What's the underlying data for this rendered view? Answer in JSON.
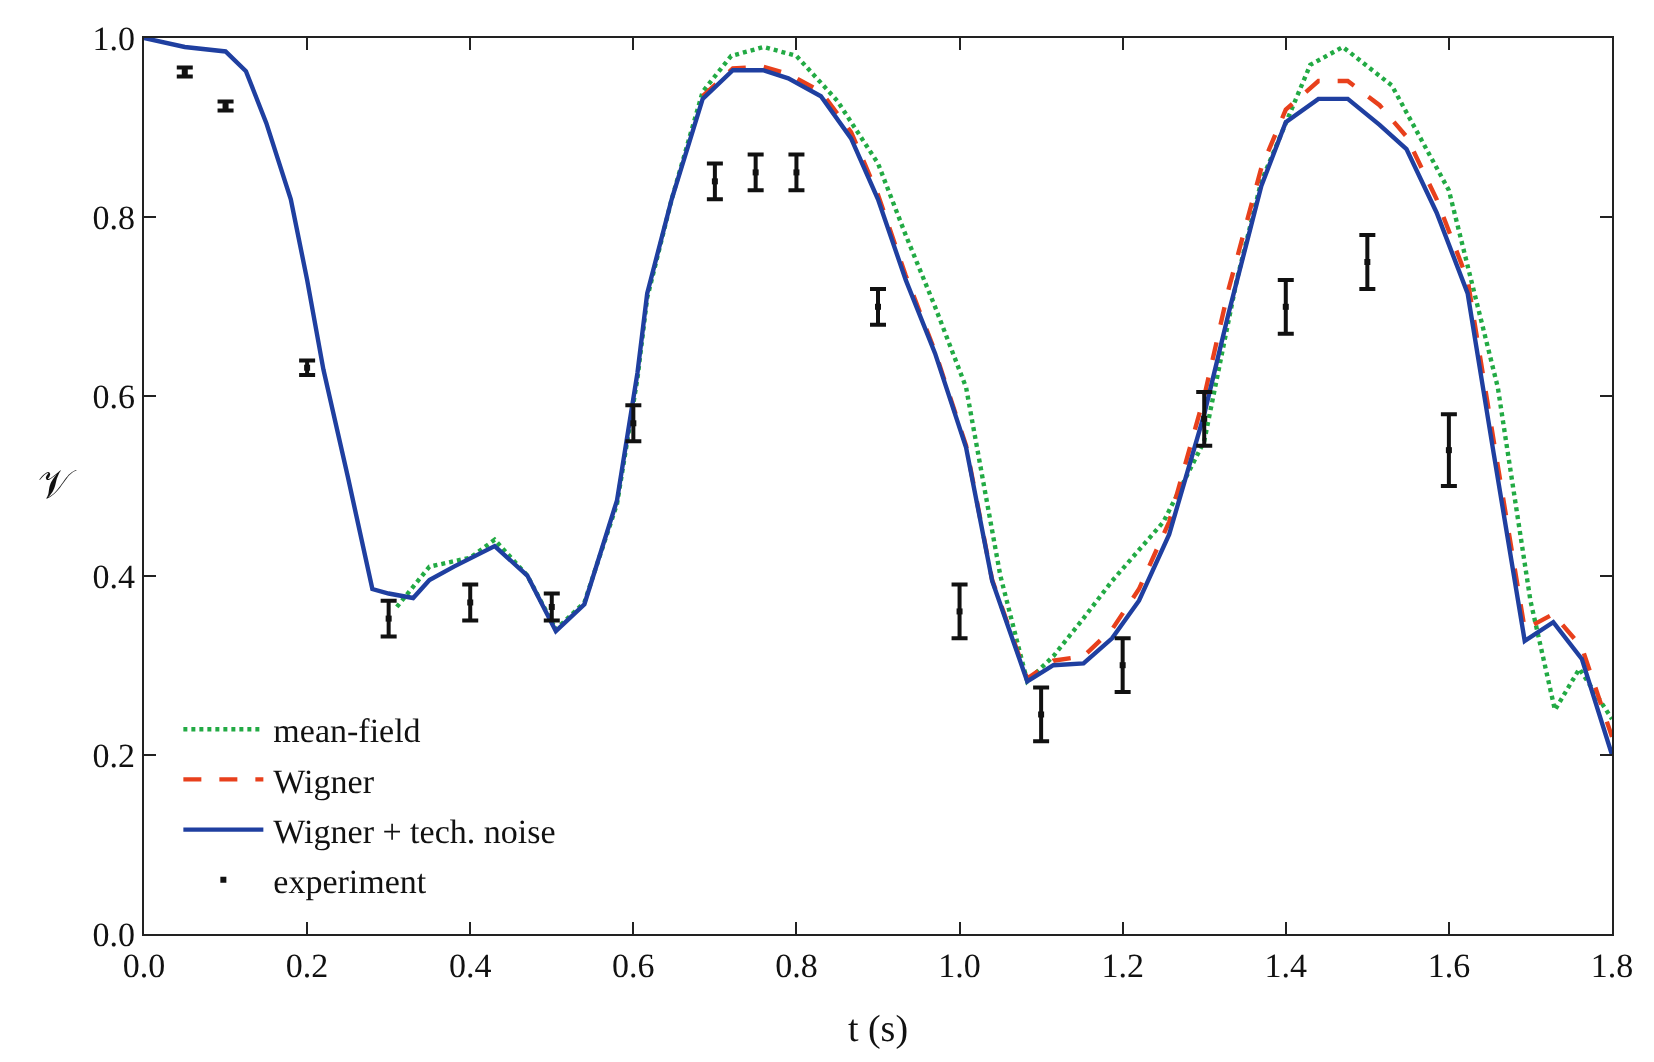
{
  "chart_data": {
    "type": "line",
    "xlabel": "t (s)",
    "ylabel": "𝒱",
    "xlim": [
      0,
      1.8
    ],
    "ylim": [
      0,
      1.0
    ],
    "xticks": [
      {
        "value": 0,
        "label": "0.0"
      },
      0.2,
      0.4,
      0.6,
      0.8,
      {
        "value": 1,
        "label": "1.0"
      },
      1.2,
      1.4,
      1.6,
      1.8
    ],
    "yticks": [
      {
        "value": 0,
        "label": "0.0"
      },
      0.2,
      0.4,
      0.6,
      0.8,
      {
        "value": 1,
        "label": "1.0"
      }
    ],
    "legend": "bottom left",
    "series": [
      {
        "name": "mean-field",
        "color": "#22aa44",
        "line_style": "dotted",
        "marker": "none",
        "x": [
          0.31,
          0.35,
          0.4,
          0.43,
          0.47,
          0.505,
          0.54,
          0.58,
          0.605,
          0.617,
          0.647,
          0.685,
          0.72,
          0.76,
          0.8,
          0.85,
          0.9,
          0.934,
          0.97,
          1.008,
          1.05,
          1.083,
          1.115,
          1.15,
          1.187,
          1.25,
          1.3,
          1.34,
          1.37,
          1.43,
          1.47,
          1.53,
          1.6,
          1.66,
          1.7,
          1.73,
          1.76,
          1.8
        ],
        "values": [
          0.365,
          0.41,
          0.42,
          0.44,
          0.4,
          0.34,
          0.37,
          0.48,
          0.62,
          0.71,
          0.82,
          0.94,
          0.98,
          0.99,
          0.98,
          0.93,
          0.86,
          0.78,
          0.7,
          0.61,
          0.4,
          0.282,
          0.31,
          0.35,
          0.394,
          0.46,
          0.55,
          0.73,
          0.84,
          0.97,
          0.99,
          0.947,
          0.83,
          0.61,
          0.372,
          0.25,
          0.296,
          0.24
        ]
      },
      {
        "name": "Wigner",
        "color": "#e8401c",
        "line_style": "dashed",
        "marker": "none",
        "x": [
          0.685,
          0.722,
          0.759,
          0.79,
          0.83,
          0.867,
          0.9,
          0.934,
          0.97,
          1.008,
          1.04,
          1.083,
          1.115,
          1.152,
          1.187,
          1.22,
          1.257,
          1.3,
          1.33,
          1.37,
          1.4,
          1.44,
          1.476,
          1.515,
          1.548,
          1.585,
          1.623,
          1.655,
          1.693,
          1.728,
          1.763,
          1.8
        ],
        "values": [
          0.935,
          0.966,
          0.968,
          0.96,
          0.94,
          0.895,
          0.825,
          0.735,
          0.65,
          0.545,
          0.395,
          0.285,
          0.305,
          0.31,
          0.34,
          0.385,
          0.46,
          0.6,
          0.72,
          0.855,
          0.92,
          0.952,
          0.952,
          0.925,
          0.89,
          0.82,
          0.73,
          0.55,
          0.34,
          0.357,
          0.32,
          0.22
        ]
      },
      {
        "name": "Wigner + tech. noise",
        "color": "#1f3fa0",
        "line_style": "solid",
        "marker": "none",
        "x": [
          0,
          0.05,
          0.1,
          0.125,
          0.15,
          0.18,
          0.2,
          0.22,
          0.25,
          0.28,
          0.3,
          0.33,
          0.35,
          0.38,
          0.43,
          0.47,
          0.505,
          0.54,
          0.58,
          0.605,
          0.617,
          0.647,
          0.685,
          0.722,
          0.759,
          0.79,
          0.83,
          0.867,
          0.9,
          0.934,
          0.97,
          1.008,
          1.04,
          1.083,
          1.115,
          1.152,
          1.187,
          1.22,
          1.257,
          1.3,
          1.33,
          1.37,
          1.4,
          1.44,
          1.476,
          1.515,
          1.548,
          1.585,
          1.623,
          1.655,
          1.693,
          1.728,
          1.763,
          1.8
        ],
        "values": [
          1.0,
          0.99,
          0.985,
          0.963,
          0.905,
          0.82,
          0.73,
          0.63,
          0.51,
          0.385,
          0.38,
          0.375,
          0.395,
          0.41,
          0.433,
          0.4,
          0.338,
          0.368,
          0.484,
          0.626,
          0.715,
          0.82,
          0.932,
          0.964,
          0.964,
          0.955,
          0.935,
          0.888,
          0.82,
          0.73,
          0.648,
          0.543,
          0.394,
          0.282,
          0.3,
          0.302,
          0.33,
          0.372,
          0.446,
          0.58,
          0.693,
          0.835,
          0.906,
          0.932,
          0.932,
          0.903,
          0.876,
          0.805,
          0.715,
          0.536,
          0.327,
          0.348,
          0.307,
          0.2
        ]
      },
      {
        "name": "experiment",
        "type": "scatter",
        "color": "#111111",
        "x": [
          0.05,
          0.1,
          0.2,
          0.3,
          0.4,
          0.5,
          0.6,
          0.7,
          0.75,
          0.8,
          0.9,
          1.0,
          1.1,
          1.2,
          1.3,
          1.4,
          1.5,
          1.6
        ],
        "values": [
          0.962,
          0.924,
          0.632,
          0.352,
          0.37,
          0.365,
          0.57,
          0.84,
          0.85,
          0.85,
          0.7,
          0.36,
          0.245,
          0.3,
          0.575,
          0.7,
          0.75,
          0.54
        ],
        "errors": [
          0.005,
          0.005,
          0.008,
          0.02,
          0.02,
          0.015,
          0.02,
          0.02,
          0.02,
          0.02,
          0.02,
          0.03,
          0.03,
          0.03,
          0.03,
          0.03,
          0.03,
          0.04
        ]
      }
    ]
  }
}
